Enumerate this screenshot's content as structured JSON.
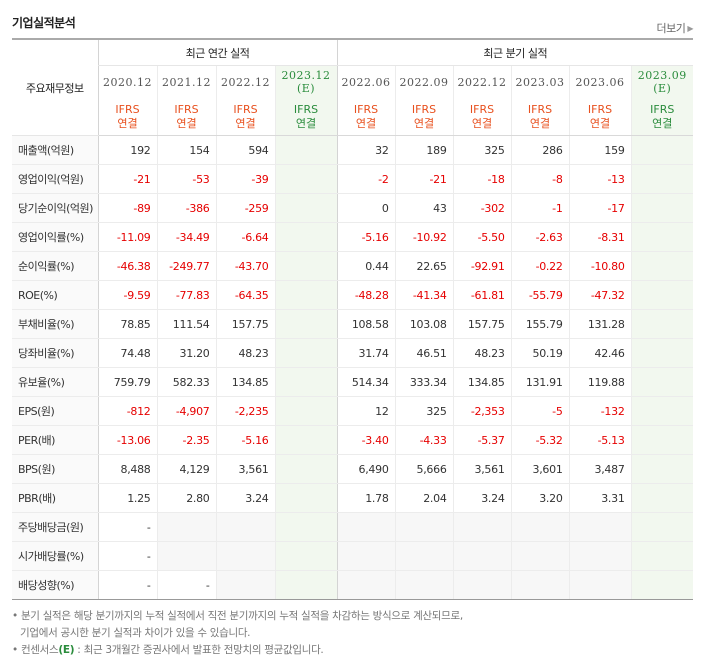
{
  "section_title": "기업실적분석",
  "more_label": "더보기",
  "corner_label": "주요재무정보",
  "annual_header": "최근 연간 실적",
  "quarter_header": "최근 분기 실적",
  "annual_periods": [
    {
      "period": "2020.12",
      "est": "",
      "basis": "IFRS",
      "type": "연결"
    },
    {
      "period": "2021.12",
      "est": "",
      "basis": "IFRS",
      "type": "연결"
    },
    {
      "period": "2022.12",
      "est": "",
      "basis": "IFRS",
      "type": "연결"
    },
    {
      "period": "2023.12",
      "est": "(E)",
      "basis": "IFRS",
      "type": "연결"
    }
  ],
  "quarter_periods": [
    {
      "period": "2022.06",
      "est": "",
      "basis": "IFRS",
      "type": "연결"
    },
    {
      "period": "2022.09",
      "est": "",
      "basis": "IFRS",
      "type": "연결"
    },
    {
      "period": "2022.12",
      "est": "",
      "basis": "IFRS",
      "type": "연결"
    },
    {
      "period": "2023.03",
      "est": "",
      "basis": "IFRS",
      "type": "연결"
    },
    {
      "period": "2023.06",
      "est": "",
      "basis": "IFRS",
      "type": "연결"
    },
    {
      "period": "2023.09",
      "est": "(E)",
      "basis": "IFRS",
      "type": "연결"
    }
  ],
  "rows": [
    {
      "label": "매출액(억원)",
      "group_start": true,
      "annual": [
        "192",
        "154",
        "594",
        ""
      ],
      "quarter": [
        "32",
        "189",
        "325",
        "286",
        "159",
        ""
      ]
    },
    {
      "label": "영업이익(억원)",
      "annual": [
        "-21",
        "-53",
        "-39",
        ""
      ],
      "quarter": [
        "-2",
        "-21",
        "-18",
        "-8",
        "-13",
        ""
      ]
    },
    {
      "label": "당기순이익(억원)",
      "annual": [
        "-89",
        "-386",
        "-259",
        ""
      ],
      "quarter": [
        "0",
        "43",
        "-302",
        "-1",
        "-17",
        ""
      ]
    },
    {
      "label": "영업이익률(%)",
      "group_start": true,
      "annual": [
        "-11.09",
        "-34.49",
        "-6.64",
        ""
      ],
      "quarter": [
        "-5.16",
        "-10.92",
        "-5.50",
        "-2.63",
        "-8.31",
        ""
      ]
    },
    {
      "label": "순이익률(%)",
      "annual": [
        "-46.38",
        "-249.77",
        "-43.70",
        ""
      ],
      "quarter": [
        "0.44",
        "22.65",
        "-92.91",
        "-0.22",
        "-10.80",
        ""
      ]
    },
    {
      "label": "ROE(%)",
      "annual": [
        "-9.59",
        "-77.83",
        "-64.35",
        ""
      ],
      "quarter": [
        "-48.28",
        "-41.34",
        "-61.81",
        "-55.79",
        "-47.32",
        ""
      ]
    },
    {
      "label": "부채비율(%)",
      "group_start": true,
      "annual": [
        "78.85",
        "111.54",
        "157.75",
        ""
      ],
      "quarter": [
        "108.58",
        "103.08",
        "157.75",
        "155.79",
        "131.28",
        ""
      ]
    },
    {
      "label": "당좌비율(%)",
      "annual": [
        "74.48",
        "31.20",
        "48.23",
        ""
      ],
      "quarter": [
        "31.74",
        "46.51",
        "48.23",
        "50.19",
        "42.46",
        ""
      ]
    },
    {
      "label": "유보율(%)",
      "annual": [
        "759.79",
        "582.33",
        "134.85",
        ""
      ],
      "quarter": [
        "514.34",
        "333.34",
        "134.85",
        "131.91",
        "119.88",
        ""
      ]
    },
    {
      "label": "EPS(원)",
      "group_start": true,
      "annual": [
        "-812",
        "-4,907",
        "-2,235",
        ""
      ],
      "quarter": [
        "12",
        "325",
        "-2,353",
        "-5",
        "-132",
        ""
      ]
    },
    {
      "label": "PER(배)",
      "annual": [
        "-13.06",
        "-2.35",
        "-5.16",
        ""
      ],
      "quarter": [
        "-3.40",
        "-4.33",
        "-5.37",
        "-5.32",
        "-5.13",
        ""
      ]
    },
    {
      "label": "BPS(원)",
      "annual": [
        "8,488",
        "4,129",
        "3,561",
        ""
      ],
      "quarter": [
        "6,490",
        "5,666",
        "3,561",
        "3,601",
        "3,487",
        ""
      ]
    },
    {
      "label": "PBR(배)",
      "annual": [
        "1.25",
        "2.80",
        "3.24",
        ""
      ],
      "quarter": [
        "1.78",
        "2.04",
        "3.24",
        "3.20",
        "3.31",
        ""
      ]
    },
    {
      "label": "주당배당금(원)",
      "group_start": true,
      "annual": [
        "-",
        null,
        null,
        ""
      ],
      "quarter": [
        null,
        null,
        null,
        null,
        null,
        ""
      ]
    },
    {
      "label": "시가배당률(%)",
      "annual": [
        "-",
        null,
        null,
        ""
      ],
      "quarter": [
        null,
        null,
        null,
        null,
        null,
        ""
      ]
    },
    {
      "label": "배당성향(%)",
      "annual": [
        "-",
        "-",
        null,
        ""
      ],
      "quarter": [
        null,
        null,
        null,
        null,
        null,
        ""
      ]
    }
  ],
  "notes": {
    "line1": "분기 실적은 해당 분기까지의 누적 실적에서 직전 분기까지의 누적 실적을 차감하는 방식으로 계산되므로,",
    "line2": "기업에서 공시한 분기 실적과 차이가 있을 수 있습니다.",
    "line3_prefix": "컨센서스",
    "line3_mark": "(E)",
    "line3_suffix": " : 최근 3개월간 증권사에서 발표한 전망치의 평균값입니다."
  }
}
